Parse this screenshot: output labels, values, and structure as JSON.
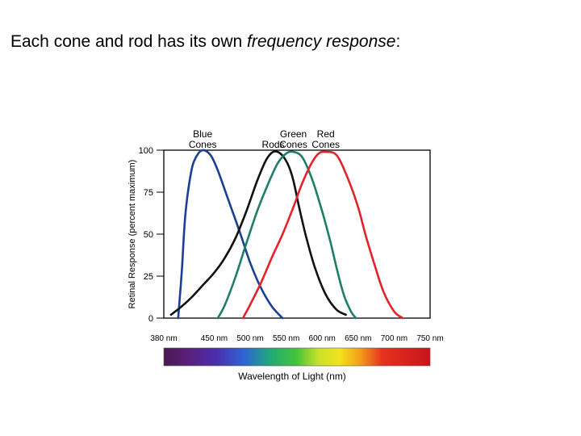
{
  "slide": {
    "title_prefix": "Each cone and rod has its own ",
    "title_emphasis": "frequency response",
    "title_suffix": ":"
  },
  "chart_data": {
    "type": "line",
    "title": "",
    "xlabel": "Wavelength of Light (nm)",
    "ylabel": "Retinal Response (percent maximum)",
    "xlim": [
      380,
      750
    ],
    "ylim": [
      0,
      100
    ],
    "x_ticks": [
      "380 nm",
      "450 nm",
      "500 nm",
      "550 nm",
      "600 nm",
      "650 nm",
      "700 nm",
      "750 nm"
    ],
    "x_tick_values": [
      380,
      450,
      500,
      550,
      600,
      650,
      700,
      750
    ],
    "y_ticks": [
      0,
      25,
      50,
      75,
      100
    ],
    "grid": false,
    "legend": "labels above peaks",
    "spectrum_bar": true,
    "series": [
      {
        "name": "Blue Cones",
        "label_lines": [
          "Blue",
          "Cones"
        ],
        "color": "#1a3f94",
        "points": [
          [
            400,
            0
          ],
          [
            405,
            28
          ],
          [
            410,
            62
          ],
          [
            418,
            87
          ],
          [
            425,
            96
          ],
          [
            434,
            100
          ],
          [
            445,
            97
          ],
          [
            455,
            88
          ],
          [
            470,
            70
          ],
          [
            485,
            52
          ],
          [
            500,
            33
          ],
          [
            515,
            18
          ],
          [
            530,
            7
          ],
          [
            545,
            0
          ]
        ]
      },
      {
        "name": "Rods",
        "label_lines": [
          "Rods"
        ],
        "color": "#111111",
        "points": [
          [
            390,
            2
          ],
          [
            405,
            7
          ],
          [
            420,
            13
          ],
          [
            435,
            20
          ],
          [
            450,
            27
          ],
          [
            465,
            36
          ],
          [
            480,
            48
          ],
          [
            495,
            64
          ],
          [
            510,
            82
          ],
          [
            522,
            94
          ],
          [
            532,
            99
          ],
          [
            542,
            98
          ],
          [
            552,
            92
          ],
          [
            560,
            82
          ],
          [
            568,
            66
          ],
          [
            578,
            48
          ],
          [
            590,
            30
          ],
          [
            605,
            14
          ],
          [
            620,
            5
          ],
          [
            633,
            2
          ]
        ]
      },
      {
        "name": "Green Cones",
        "label_lines": [
          "Green",
          "Cones"
        ],
        "color": "#1d7e68",
        "points": [
          [
            455,
            0
          ],
          [
            465,
            8
          ],
          [
            480,
            25
          ],
          [
            495,
            45
          ],
          [
            510,
            64
          ],
          [
            525,
            80
          ],
          [
            538,
            92
          ],
          [
            550,
            98
          ],
          [
            560,
            99
          ],
          [
            572,
            96
          ],
          [
            585,
            84
          ],
          [
            597,
            68
          ],
          [
            610,
            48
          ],
          [
            620,
            30
          ],
          [
            630,
            14
          ],
          [
            640,
            4
          ],
          [
            647,
            0
          ]
        ]
      },
      {
        "name": "Red Cones",
        "label_lines": [
          "Red",
          "Cones"
        ],
        "color": "#e3222a",
        "points": [
          [
            490,
            0
          ],
          [
            500,
            8
          ],
          [
            515,
            21
          ],
          [
            530,
            36
          ],
          [
            545,
            50
          ],
          [
            560,
            66
          ],
          [
            572,
            80
          ],
          [
            585,
            92
          ],
          [
            595,
            98
          ],
          [
            605,
            99
          ],
          [
            620,
            97
          ],
          [
            635,
            84
          ],
          [
            650,
            66
          ],
          [
            660,
            50
          ],
          [
            672,
            33
          ],
          [
            685,
            16
          ],
          [
            700,
            4
          ],
          [
            712,
            0
          ]
        ]
      }
    ]
  }
}
